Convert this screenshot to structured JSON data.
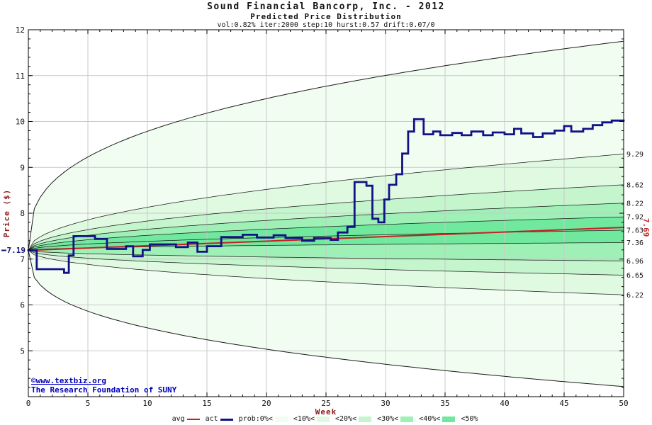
{
  "chart_data": {
    "type": "area",
    "title": "Sound Financial Bancorp, Inc. - 2012",
    "subtitle": "Predicted Price Distribution",
    "params_line": "vol:0.82% iter:2000 step:10 hurst:0.57 drift:0.07/0",
    "xlabel": "Week",
    "ylabel": "Price ($)",
    "xlim": [
      0,
      50
    ],
    "ylim": [
      4,
      12
    ],
    "xticks": [
      0,
      5,
      10,
      15,
      20,
      25,
      30,
      35,
      40,
      45,
      50
    ],
    "yticks": [
      5,
      6,
      7,
      8,
      9,
      10,
      11,
      12
    ],
    "x_minor_step": 1,
    "y_minor_step": 0.2,
    "grid": true,
    "start_value": 7.19,
    "start_label": "7.19",
    "fan": {
      "note": "percentile fan starting at start_value, boundaries listed top to bottom with week-50 end values",
      "boundaries": [
        {
          "end": 11.75,
          "h": 0.35,
          "label": ""
        },
        {
          "end": 9.29,
          "h": 0.5,
          "label": "9.29"
        },
        {
          "end": 8.62,
          "h": 0.5,
          "label": "8.62"
        },
        {
          "end": 8.22,
          "h": 0.5,
          "label": "8.22"
        },
        {
          "end": 7.92,
          "h": 0.5,
          "label": "7.92"
        },
        {
          "end": 7.63,
          "h": 0.5,
          "label": "7.63"
        },
        {
          "end": 7.36,
          "h": 0.5,
          "label": "7.36"
        },
        {
          "end": 6.96,
          "h": 0.5,
          "label": "6.96"
        },
        {
          "end": 6.65,
          "h": 0.5,
          "label": "6.65"
        },
        {
          "end": 6.22,
          "h": 0.5,
          "label": "6.22"
        },
        {
          "end": 4.22,
          "h": 0.35,
          "label": ""
        }
      ],
      "band_fills": [
        "#f1fdf1",
        "#e0fae2",
        "#c4f5cd",
        "#9ff0b6",
        "#70e89e",
        "#70e89e",
        "#9ff0b6",
        "#c4f5cd",
        "#e0fae2",
        "#f1fdf1"
      ],
      "boundary_stroke": "#1c1c1c"
    },
    "series": [
      {
        "name": "avg",
        "type": "line",
        "color": "#c42222",
        "width": 2,
        "end_label": "7.69",
        "points": [
          [
            0,
            7.19
          ],
          [
            50,
            7.69
          ]
        ]
      },
      {
        "name": "act",
        "type": "step",
        "color": "#121287",
        "width": 2.8,
        "end_label": "",
        "points": [
          [
            0,
            7.19
          ],
          [
            0.7,
            7.19
          ],
          [
            0.7,
            6.78
          ],
          [
            3.0,
            6.78
          ],
          [
            3.0,
            6.7
          ],
          [
            3.4,
            6.7
          ],
          [
            3.4,
            7.08
          ],
          [
            3.8,
            7.08
          ],
          [
            3.8,
            7.5
          ],
          [
            5.6,
            7.5
          ],
          [
            5.6,
            7.44
          ],
          [
            6.6,
            7.44
          ],
          [
            6.6,
            7.22
          ],
          [
            8.2,
            7.22
          ],
          [
            8.2,
            7.28
          ],
          [
            8.8,
            7.28
          ],
          [
            8.8,
            7.06
          ],
          [
            9.6,
            7.06
          ],
          [
            9.6,
            7.2
          ],
          [
            10.2,
            7.2
          ],
          [
            10.2,
            7.32
          ],
          [
            12.4,
            7.32
          ],
          [
            12.4,
            7.26
          ],
          [
            13.4,
            7.26
          ],
          [
            13.4,
            7.36
          ],
          [
            14.2,
            7.36
          ],
          [
            14.2,
            7.16
          ],
          [
            15.0,
            7.16
          ],
          [
            15.0,
            7.28
          ],
          [
            16.2,
            7.28
          ],
          [
            16.2,
            7.48
          ],
          [
            18.0,
            7.48
          ],
          [
            18.0,
            7.53
          ],
          [
            19.2,
            7.53
          ],
          [
            19.2,
            7.47
          ],
          [
            20.6,
            7.47
          ],
          [
            20.6,
            7.52
          ],
          [
            21.6,
            7.52
          ],
          [
            21.6,
            7.46
          ],
          [
            23.0,
            7.46
          ],
          [
            23.0,
            7.4
          ],
          [
            24.0,
            7.4
          ],
          [
            24.0,
            7.46
          ],
          [
            25.4,
            7.46
          ],
          [
            25.4,
            7.42
          ],
          [
            26.0,
            7.42
          ],
          [
            26.0,
            7.58
          ],
          [
            26.8,
            7.58
          ],
          [
            26.8,
            7.7
          ],
          [
            27.4,
            7.7
          ],
          [
            27.4,
            8.68
          ],
          [
            28.4,
            8.68
          ],
          [
            28.4,
            8.6
          ],
          [
            28.9,
            8.6
          ],
          [
            28.9,
            7.88
          ],
          [
            29.4,
            7.88
          ],
          [
            29.4,
            7.8
          ],
          [
            29.9,
            7.8
          ],
          [
            29.9,
            8.3
          ],
          [
            30.3,
            8.3
          ],
          [
            30.3,
            8.62
          ],
          [
            30.9,
            8.62
          ],
          [
            30.9,
            8.85
          ],
          [
            31.4,
            8.85
          ],
          [
            31.4,
            9.3
          ],
          [
            31.9,
            9.3
          ],
          [
            31.9,
            9.78
          ],
          [
            32.4,
            9.78
          ],
          [
            32.4,
            10.05
          ],
          [
            33.2,
            10.05
          ],
          [
            33.2,
            9.72
          ],
          [
            34.0,
            9.72
          ],
          [
            34.0,
            9.78
          ],
          [
            34.6,
            9.78
          ],
          [
            34.6,
            9.7
          ],
          [
            35.6,
            9.7
          ],
          [
            35.6,
            9.75
          ],
          [
            36.4,
            9.75
          ],
          [
            36.4,
            9.7
          ],
          [
            37.2,
            9.7
          ],
          [
            37.2,
            9.78
          ],
          [
            38.2,
            9.78
          ],
          [
            38.2,
            9.7
          ],
          [
            39.0,
            9.7
          ],
          [
            39.0,
            9.76
          ],
          [
            40.0,
            9.76
          ],
          [
            40.0,
            9.72
          ],
          [
            40.8,
            9.72
          ],
          [
            40.8,
            9.84
          ],
          [
            41.4,
            9.84
          ],
          [
            41.4,
            9.74
          ],
          [
            42.4,
            9.74
          ],
          [
            42.4,
            9.66
          ],
          [
            43.2,
            9.66
          ],
          [
            43.2,
            9.74
          ],
          [
            44.2,
            9.74
          ],
          [
            44.2,
            9.8
          ],
          [
            45.0,
            9.8
          ],
          [
            45.0,
            9.9
          ],
          [
            45.6,
            9.9
          ],
          [
            45.6,
            9.78
          ],
          [
            46.6,
            9.78
          ],
          [
            46.6,
            9.84
          ],
          [
            47.4,
            9.84
          ],
          [
            47.4,
            9.92
          ],
          [
            48.2,
            9.92
          ],
          [
            48.2,
            9.98
          ],
          [
            49.0,
            9.98
          ],
          [
            49.0,
            10.02
          ],
          [
            50,
            10.02
          ]
        ]
      }
    ],
    "legend": [
      {
        "label": "avg",
        "marker": "line",
        "color": "#c42222"
      },
      {
        "label": "act",
        "marker": "line-thick",
        "color": "#121287"
      },
      {
        "label": "prob:0%<",
        "marker": "swatch",
        "color": "#f1fdf1"
      },
      {
        "label": "<10%<",
        "marker": "swatch",
        "color": "#e0fae2"
      },
      {
        "label": "<20%<",
        "marker": "swatch",
        "color": "#c4f5cd"
      },
      {
        "label": "<30%<",
        "marker": "swatch",
        "color": "#9ff0b6"
      },
      {
        "label": "<40%<",
        "marker": "swatch",
        "color": "#70e89e"
      },
      {
        "label": "<50%",
        "marker": "none",
        "color": ""
      }
    ],
    "watermark": {
      "line1": "©www.textbiz.org",
      "line2": "The Research Foundation of SUNY",
      "color": "#0000bb"
    },
    "colors": {
      "background": "#ffffff",
      "grid": "#c9c9c9",
      "axis": "#000000",
      "axis_title": "#8b1a1a",
      "tick_label": "#111111",
      "title": "#151515",
      "right_label": "#111111",
      "avg": "#c42222",
      "act": "#121287",
      "start_label": "#16167e",
      "watermark": "#0000bb"
    }
  }
}
